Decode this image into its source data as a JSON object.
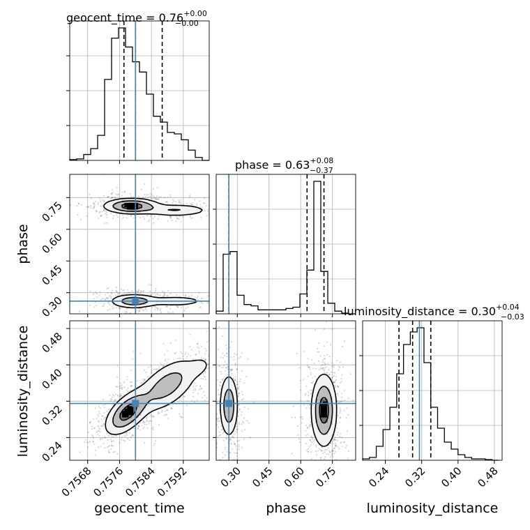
{
  "chart_data": {
    "type": "corner",
    "parameters": [
      "geocent_time",
      "phase",
      "luminosity_distance"
    ],
    "truths": {
      "geocent_time": 0.758,
      "phase": 0.26,
      "luminosity_distance": 0.315
    },
    "axes": {
      "geocent_time": {
        "label": "geocent_time",
        "range": [
          0.75635,
          0.75985
        ],
        "ticks": [
          0.7568,
          0.7576,
          0.7584,
          0.7592
        ],
        "tick_labels": [
          "0.7568",
          "0.7576",
          "0.7584",
          "0.7592"
        ]
      },
      "phase": {
        "label": "phase",
        "range": [
          0.2,
          0.86
        ],
        "ticks": [
          0.3,
          0.45,
          0.6,
          0.75
        ],
        "tick_labels": [
          "0.30",
          "0.45",
          "0.60",
          "0.75"
        ]
      },
      "luminosity_distance": {
        "label": "luminosity_distance",
        "range": [
          0.19,
          0.497
        ],
        "ticks": [
          0.24,
          0.32,
          0.4,
          0.48
        ],
        "tick_labels": [
          "0.24",
          "0.32",
          "0.40",
          "0.48"
        ]
      }
    },
    "titles": {
      "geocent_time": {
        "prefix": "geocent_time = 0.76",
        "plus": "+0.00",
        "minus": "−0.00"
      },
      "phase": {
        "prefix": "phase = 0.63",
        "plus": "+0.08",
        "minus": "−0.37"
      },
      "luminosity_distance": {
        "prefix": "luminosity_distance = 0.30",
        "plus": "+0.04",
        "minus": "−0.03"
      }
    },
    "histograms": {
      "geocent_time": {
        "bin_edges": [
          0.75635,
          0.756525,
          0.7567,
          0.756875,
          0.75705,
          0.757225,
          0.7574,
          0.757575,
          0.75775,
          0.757925,
          0.7581,
          0.758275,
          0.75845,
          0.758625,
          0.7588,
          0.758975,
          0.75915,
          0.759325,
          0.7595,
          0.759675,
          0.75985
        ],
        "counts": [
          0.5,
          1,
          4,
          8,
          17,
          55,
          83,
          90,
          77,
          67,
          60,
          45,
          30,
          26,
          19,
          18,
          14,
          7,
          2,
          0
        ],
        "quantiles": [
          0.75771,
          0.758,
          0.75867
        ]
      },
      "phase": {
        "bin_edges": [
          0.2,
          0.233,
          0.266,
          0.299,
          0.332,
          0.365,
          0.398,
          0.431,
          0.464,
          0.497,
          0.53,
          0.563,
          0.596,
          0.629,
          0.662,
          0.695,
          0.728,
          0.761,
          0.794,
          0.827,
          0.86
        ],
        "counts": [
          2,
          45,
          47,
          14,
          7,
          6,
          3,
          3,
          3,
          3,
          4,
          5,
          15,
          33,
          100,
          32,
          8,
          2,
          0.5,
          0
        ],
        "quantiles": [
          0.26,
          0.63,
          0.71
        ]
      },
      "luminosity_distance": {
        "bin_edges": [
          0.19,
          0.205,
          0.22,
          0.235,
          0.25,
          0.265,
          0.28,
          0.295,
          0.31,
          0.325,
          0.34,
          0.355,
          0.37,
          0.385,
          0.4,
          0.415,
          0.43,
          0.445,
          0.46,
          0.475,
          0.49
        ],
        "counts": [
          1,
          2,
          10,
          22,
          38,
          62,
          83,
          92,
          95,
          70,
          38,
          23,
          13,
          8,
          4,
          2,
          1,
          1,
          0.5,
          0
        ],
        "quantiles": [
          0.27,
          0.3,
          0.34
        ]
      }
    },
    "densities": {
      "phase_vs_geocent_time": {
        "x": "geocent_time",
        "y": "phase",
        "modes": [
          {
            "center": [
              0.7579,
              0.71
            ],
            "sd": [
              0.00035,
              0.018
            ],
            "weight": 0.42,
            "tilt": 0
          },
          {
            "center": [
              0.759,
              0.69
            ],
            "sd": [
              0.00045,
              0.015
            ],
            "weight": 0.18,
            "tilt": 0
          },
          {
            "center": [
              0.75795,
              0.26
            ],
            "sd": [
              0.0003,
              0.017
            ],
            "weight": 0.28,
            "tilt": 0
          },
          {
            "center": [
              0.759,
              0.26
            ],
            "sd": [
              0.00045,
              0.014
            ],
            "weight": 0.12,
            "tilt": 0
          }
        ]
      },
      "luminosity_distance_vs_geocent_time": {
        "x": "geocent_time",
        "y": "luminosity_distance",
        "modes": [
          {
            "center": [
              0.7578,
              0.295
            ],
            "sd": [
              0.00028,
              0.02
            ],
            "weight": 0.55,
            "tilt": 0.7
          },
          {
            "center": [
              0.7588,
              0.355
            ],
            "sd": [
              0.0004,
              0.025
            ],
            "weight": 0.35,
            "tilt": 0.7
          },
          {
            "center": [
              0.7596,
              0.395
            ],
            "sd": [
              0.00018,
              0.012
            ],
            "weight": 0.1,
            "tilt": 0.4
          }
        ]
      },
      "luminosity_distance_vs_phase": {
        "x": "phase",
        "y": "luminosity_distance",
        "modes": [
          {
            "center": [
              0.26,
              0.31
            ],
            "sd": [
              0.022,
              0.035
            ],
            "weight": 0.42,
            "tilt": 0
          },
          {
            "center": [
              0.71,
              0.3
            ],
            "sd": [
              0.03,
              0.04
            ],
            "weight": 0.58,
            "tilt": 0
          }
        ]
      }
    },
    "contour_levels": [
      0.39,
      0.86,
      0.99
    ],
    "truth_color": "#4682b4",
    "line_color": "#000000",
    "grid": true
  }
}
